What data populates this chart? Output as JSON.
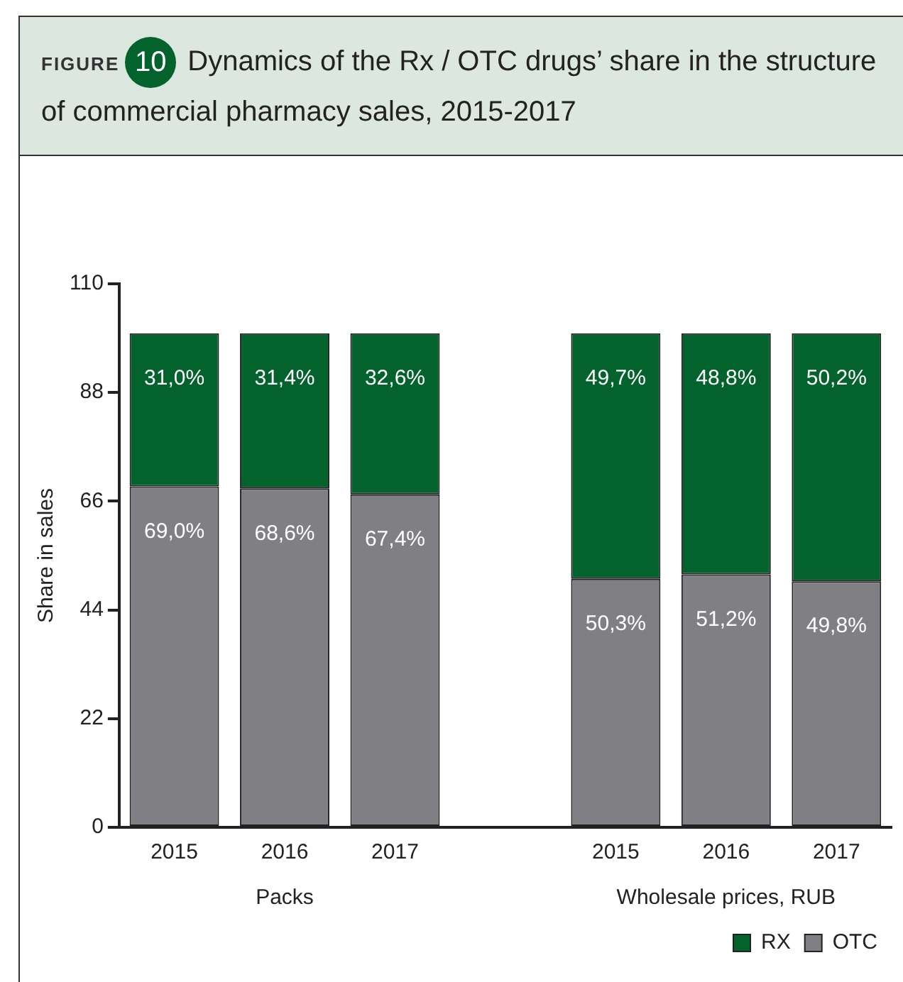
{
  "chart_data": {
    "type": "bar",
    "title": "Dynamics of the Rx / OTC drugs’ share in the structure of commercial pharmacy sales, 2015-2017",
    "ylabel": "Share in sales",
    "annotations": [
      "FIGURE",
      "10",
      "Packs",
      "Wholesale prices, RUB"
    ],
    "categories": [
      "2015",
      "2016",
      "2017",
      null,
      "2015",
      "2016",
      "2017"
    ],
    "stacked": true,
    "series": [
      {
        "name": "OTC",
        "color": "#808084",
        "values": [
          69.0,
          68.6,
          67.4,
          null,
          50.3,
          51.2,
          49.8
        ],
        "value_labels": [
          "69,0%",
          "68,6%",
          "67,4%",
          null,
          "50,3%",
          "51,2%",
          "49,8%"
        ]
      },
      {
        "name": "RX",
        "color": "#04632c",
        "values": [
          31.0,
          31.4,
          32.6,
          null,
          49.7,
          48.8,
          50.2
        ],
        "value_labels": [
          "31,0%",
          "31,4%",
          "32,6%",
          null,
          "49,7%",
          "48,8%",
          "50,2%"
        ]
      }
    ],
    "ylim": [
      0,
      110
    ],
    "yticks": [
      0,
      22,
      44,
      66,
      88,
      110
    ],
    "grid": false,
    "legend": "bottom right"
  }
}
